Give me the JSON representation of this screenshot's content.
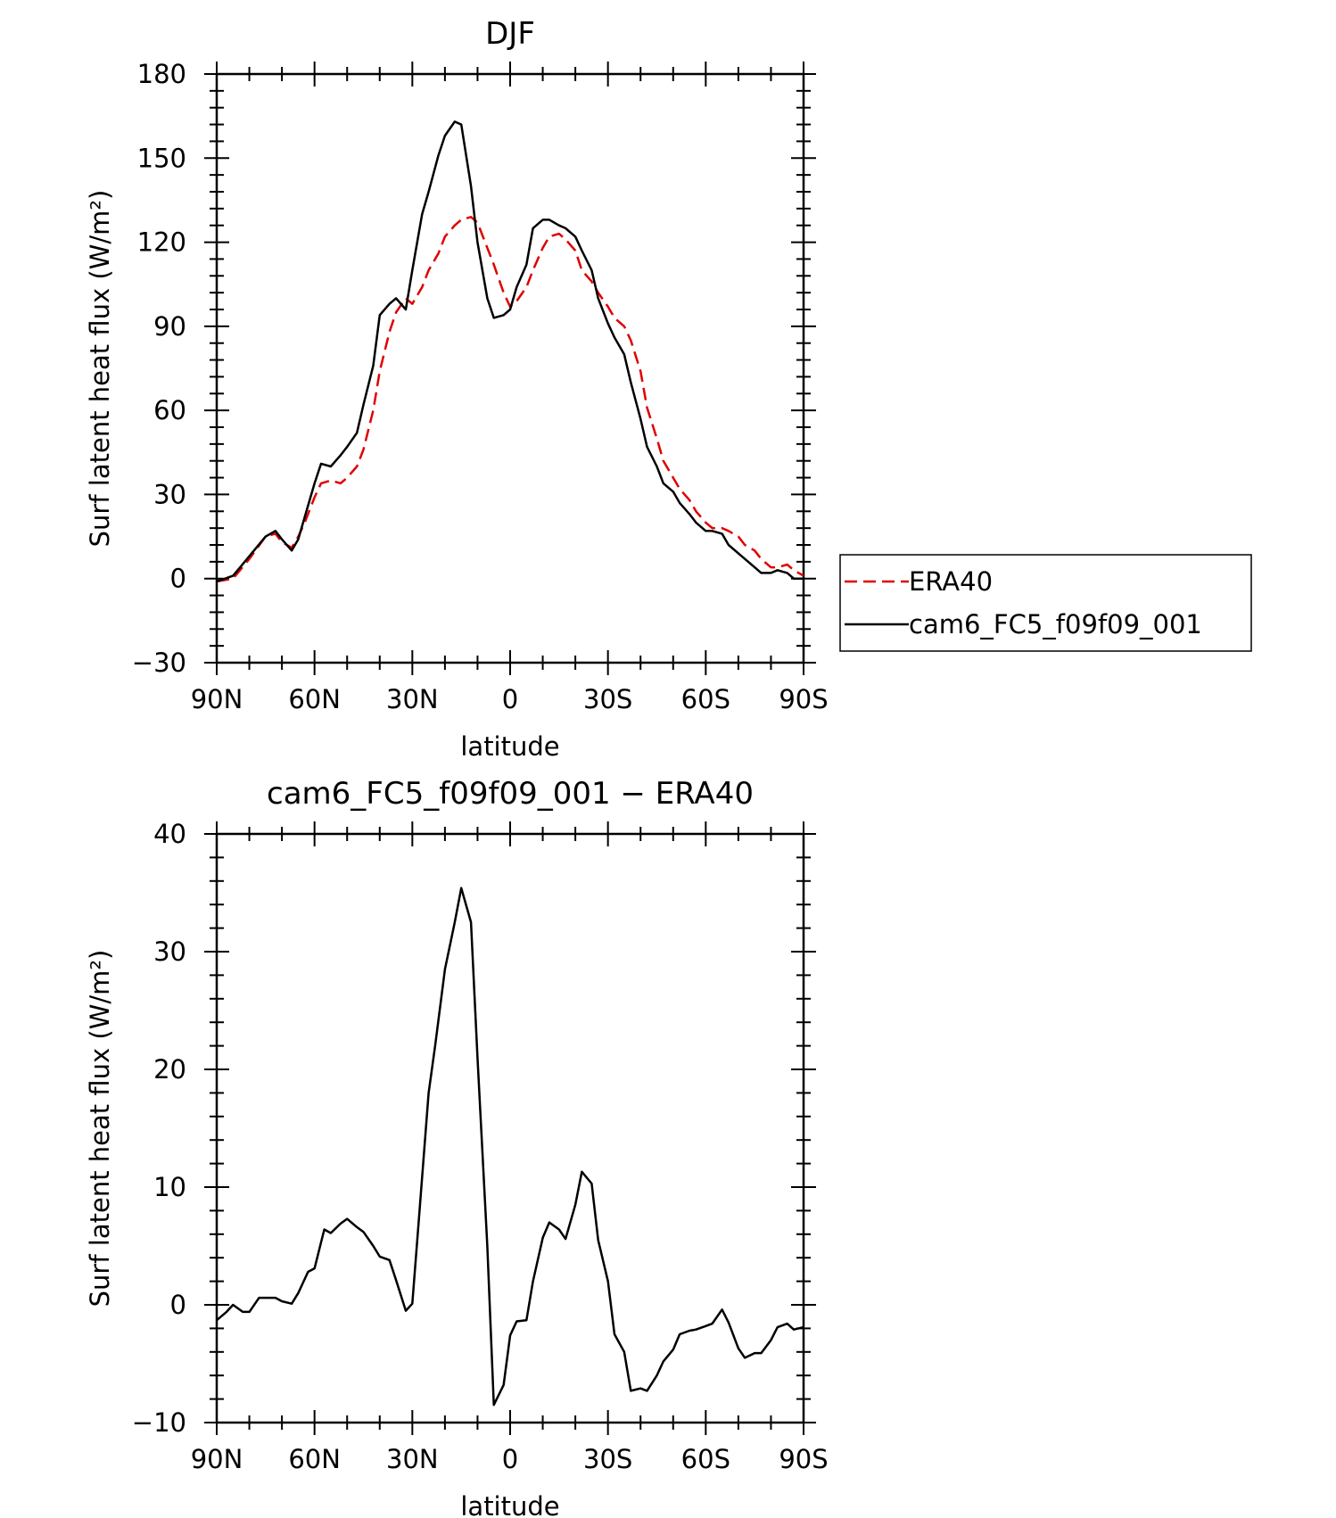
{
  "chart_data": [
    {
      "type": "line",
      "title": "DJF",
      "xlabel": "latitude",
      "ylabel": "Surf latent heat flux (W/m²)",
      "xlim": [
        90,
        -90
      ],
      "ylim": [
        -30,
        180
      ],
      "x_ticks": [
        90,
        60,
        30,
        0,
        -30,
        -60,
        -90
      ],
      "x_tick_labels": [
        "90N",
        "60N",
        "30N",
        "0",
        "30S",
        "60S",
        "90S"
      ],
      "y_ticks": [
        -30,
        0,
        30,
        60,
        90,
        120,
        150,
        180
      ],
      "y_tick_labels": [
        "−30",
        "0",
        "30",
        "60",
        "90",
        "120",
        "150",
        "180"
      ],
      "legend": {
        "position": "right",
        "entries": [
          "ERA40",
          "cam6_FC5_f09f09_001"
        ]
      },
      "series": [
        {
          "name": "ERA40",
          "color": "#e00000",
          "dash": "dashed",
          "x": [
            90,
            85,
            80,
            75,
            72,
            70,
            67,
            65,
            63,
            60,
            58,
            55,
            52,
            50,
            47,
            45,
            42,
            40,
            37,
            35,
            32,
            30,
            27,
            25,
            22,
            20,
            17,
            15,
            12,
            10,
            7,
            5,
            2,
            0,
            -2,
            -5,
            -7,
            -10,
            -12,
            -15,
            -17,
            -20,
            -22,
            -25,
            -27,
            -30,
            -32,
            -35,
            -37,
            -40,
            -42,
            -45,
            -47,
            -50,
            -52,
            -55,
            -57,
            -60,
            -62,
            -65,
            -67,
            -70,
            -72,
            -75,
            -77,
            -80,
            -82,
            -85,
            -87,
            -90
          ],
          "y": [
            -1,
            0,
            7,
            15,
            16,
            13,
            11,
            15,
            20,
            29,
            34,
            35,
            34,
            36,
            40,
            46,
            60,
            74,
            88,
            95,
            100,
            98,
            104,
            110,
            116,
            122,
            126,
            128,
            129,
            127,
            118,
            112,
            102,
            97,
            99,
            104,
            110,
            118,
            122,
            123,
            121,
            117,
            110,
            106,
            102,
            97,
            93,
            90,
            85,
            74,
            61,
            50,
            42,
            36,
            32,
            28,
            24,
            20,
            18,
            18,
            17,
            15,
            12,
            10,
            7,
            4,
            4,
            5,
            3,
            1
          ]
        },
        {
          "name": "cam6_FC5_f09f09_001",
          "color": "#000000",
          "dash": "solid",
          "x": [
            90,
            85,
            80,
            75,
            72,
            70,
            67,
            65,
            63,
            60,
            58,
            55,
            52,
            50,
            47,
            45,
            42,
            40,
            37,
            35,
            32,
            30,
            27,
            25,
            22,
            20,
            17,
            15,
            12,
            10,
            7,
            5,
            2,
            0,
            -2,
            -5,
            -7,
            -10,
            -12,
            -15,
            -17,
            -20,
            -22,
            -25,
            -27,
            -30,
            -32,
            -35,
            -37,
            -40,
            -42,
            -45,
            -47,
            -50,
            -52,
            -55,
            -57,
            -60,
            -62,
            -65,
            -67,
            -70,
            -72,
            -75,
            -77,
            -80,
            -82,
            -85,
            -87,
            -90
          ],
          "y": [
            -1,
            1,
            8,
            15,
            17,
            14,
            10,
            14,
            22,
            34,
            41,
            40,
            44,
            47,
            52,
            62,
            76,
            94,
            98,
            100,
            96,
            110,
            130,
            138,
            151,
            158,
            163,
            162,
            140,
            120,
            100,
            93,
            94,
            96,
            104,
            112,
            125,
            128,
            128,
            126,
            125,
            122,
            117,
            110,
            100,
            91,
            86,
            80,
            70,
            57,
            47,
            40,
            34,
            31,
            27,
            23,
            20,
            17,
            17,
            16,
            12,
            9,
            7,
            4,
            2,
            2,
            3,
            2,
            0,
            0
          ]
        }
      ]
    },
    {
      "type": "line",
      "title": "cam6_FC5_f09f09_001 − ERA40",
      "xlabel": "latitude",
      "ylabel": "Surf latent heat flux (W/m²)",
      "xlim": [
        90,
        -90
      ],
      "ylim": [
        -10,
        40
      ],
      "x_ticks": [
        90,
        60,
        30,
        0,
        -30,
        -60,
        -90
      ],
      "x_tick_labels": [
        "90N",
        "60N",
        "30N",
        "0",
        "30S",
        "60S",
        "90S"
      ],
      "y_ticks": [
        -10,
        0,
        10,
        20,
        30,
        40
      ],
      "y_tick_labels": [
        "−10",
        "0",
        "10",
        "20",
        "30",
        "40"
      ],
      "series": [
        {
          "color": "#000000",
          "dash": "solid",
          "x": [
            90,
            87,
            85,
            82,
            80,
            77,
            75,
            72,
            70,
            67,
            65,
            62,
            60,
            57,
            55,
            52,
            50,
            47,
            45,
            42,
            40,
            37,
            35,
            32,
            30,
            28,
            25,
            23,
            20,
            17,
            15,
            12,
            10,
            7,
            5,
            2,
            0,
            -2,
            -5,
            -7,
            -10,
            -12,
            -15,
            -17,
            -20,
            -22,
            -25,
            -27,
            -30,
            -32,
            -35,
            -37,
            -40,
            -42,
            -45,
            -47,
            -50,
            -52,
            -55,
            -57,
            -60,
            -62,
            -65,
            -67,
            -70,
            -72,
            -75,
            -77,
            -80,
            -82,
            -85,
            -87,
            -90
          ],
          "y": [
            -1.3,
            -0.6,
            0.0,
            -0.6,
            -0.6,
            0.6,
            0.6,
            0.6,
            0.3,
            0.1,
            1.0,
            2.8,
            3.1,
            6.4,
            6.1,
            6.9,
            7.3,
            6.6,
            6.2,
            5.0,
            4.1,
            3.8,
            2.1,
            -0.5,
            0.1,
            7.2,
            18.0,
            22.0,
            28.5,
            32.5,
            35.4,
            32.5,
            21.0,
            5.0,
            -8.5,
            -6.8,
            -2.6,
            -1.4,
            -1.3,
            2.0,
            5.7,
            7.0,
            6.4,
            5.6,
            8.5,
            11.3,
            10.3,
            5.5,
            2.0,
            -2.5,
            -4.0,
            -7.3,
            -7.1,
            -7.3,
            -6.0,
            -4.8,
            -3.8,
            -2.5,
            -2.2,
            -2.1,
            -1.8,
            -1.6,
            -0.4,
            -1.5,
            -3.7,
            -4.5,
            -4.1,
            -4.1,
            -3.0,
            -1.9,
            -1.6,
            -2.1,
            -1.9
          ]
        }
      ]
    }
  ]
}
